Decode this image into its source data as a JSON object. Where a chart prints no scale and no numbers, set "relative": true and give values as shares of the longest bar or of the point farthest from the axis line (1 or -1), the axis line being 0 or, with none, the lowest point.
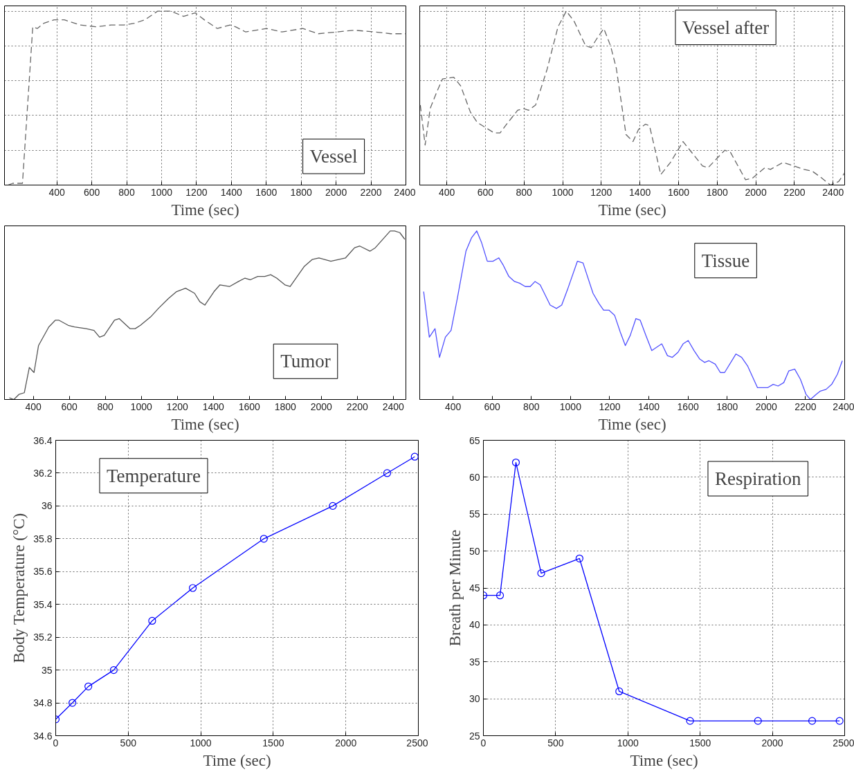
{
  "chart_data": [
    {
      "type": "line",
      "xlabel": "Time (sec)",
      "relative": true,
      "xlim": [
        100,
        2400
      ],
      "xticks": [
        400,
        600,
        800,
        1000,
        1200,
        1400,
        1600,
        1800,
        2000,
        2200,
        2400
      ],
      "grid": true,
      "tick_labels": "x",
      "line_style": "dashed",
      "annotations": [
        "Vessel"
      ],
      "x": [
        120,
        147,
        203,
        262,
        288,
        325,
        384,
        443,
        533,
        622,
        711,
        785,
        845,
        904,
        978,
        1008,
        1052,
        1126,
        1193,
        1245,
        1319,
        1393,
        1423,
        1482,
        1601,
        1690,
        1809,
        1898,
        2002,
        2106,
        2224,
        2313,
        2400
      ],
      "series": [
        {
          "color": "#666666",
          "values": [
            0,
            0.01,
            0.01,
            0.91,
            0.9,
            0.93,
            0.95,
            0.95,
            0.92,
            0.91,
            0.92,
            0.92,
            0.93,
            0.95,
            1.0,
            1.0,
            1.0,
            0.97,
            0.99,
            0.95,
            0.9,
            0.92,
            0.91,
            0.88,
            0.9,
            0.88,
            0.9,
            0.87,
            0.88,
            0.89,
            0.88,
            0.87,
            0.87
          ]
        }
      ]
    },
    {
      "type": "line",
      "xlabel": "Time (sec)",
      "relative": true,
      "xlim": [
        260,
        2460
      ],
      "xticks": [
        400,
        600,
        800,
        1000,
        1200,
        1400,
        1600,
        1800,
        2000,
        2200,
        2400
      ],
      "grid": true,
      "tick_labels": "x",
      "line_style": "dashed",
      "annotations": [
        "Vessel after"
      ],
      "x": [
        263,
        288,
        314,
        350,
        378,
        436,
        472,
        522,
        558,
        645,
        676,
        717,
        767,
        796,
        824,
        860,
        918,
        976,
        1019,
        1060,
        1119,
        1148,
        1176,
        1213,
        1248,
        1278,
        1328,
        1364,
        1393,
        1429,
        1450,
        1508,
        1558,
        1623,
        1724,
        1753,
        1839,
        1868,
        1947,
        1983,
        2047,
        2076,
        2141,
        2170,
        2249,
        2292,
        2342,
        2386,
        2429,
        2460
      ],
      "series": [
        {
          "color": "#666666",
          "values": [
            0.46,
            0.23,
            0.44,
            0.54,
            0.61,
            0.62,
            0.57,
            0.42,
            0.36,
            0.3,
            0.3,
            0.36,
            0.43,
            0.44,
            0.43,
            0.46,
            0.66,
            0.91,
            1.0,
            0.94,
            0.8,
            0.79,
            0.84,
            0.9,
            0.8,
            0.67,
            0.29,
            0.25,
            0.32,
            0.35,
            0.34,
            0.06,
            0.13,
            0.25,
            0.11,
            0.1,
            0.2,
            0.19,
            0.03,
            0.04,
            0.1,
            0.09,
            0.13,
            0.12,
            0.09,
            0.08,
            0.04,
            0,
            0.02,
            0.07
          ]
        }
      ]
    },
    {
      "type": "line",
      "xlabel": "Time (sec)",
      "relative": true,
      "xlim": [
        240,
        2470
      ],
      "xticks": [
        400,
        600,
        800,
        1000,
        1200,
        1400,
        1600,
        1800,
        2000,
        2200,
        2400
      ],
      "tick_labels": "x",
      "line_style": "solid",
      "annotations": [
        "Tumor"
      ],
      "x": [
        267,
        292,
        320,
        350,
        378,
        404,
        429,
        486,
        522,
        543,
        594,
        629,
        694,
        737,
        768,
        794,
        851,
        877,
        938,
        966,
        995,
        1052,
        1095,
        1152,
        1196,
        1246,
        1296,
        1325,
        1353,
        1404,
        1437,
        1490,
        1540,
        1576,
        1605,
        1647,
        1686,
        1719,
        1752,
        1798,
        1827,
        1906,
        1949,
        1987,
        2053,
        2135,
        2185,
        2214,
        2271,
        2300,
        2383,
        2407,
        2436,
        2464
      ],
      "series": [
        {
          "color": "#555555",
          "values": [
            0.01,
            0,
            0.03,
            0.04,
            0.19,
            0.16,
            0.32,
            0.43,
            0.47,
            0.47,
            0.44,
            0.43,
            0.42,
            0.41,
            0.37,
            0.38,
            0.47,
            0.48,
            0.42,
            0.42,
            0.44,
            0.49,
            0.54,
            0.6,
            0.64,
            0.66,
            0.63,
            0.58,
            0.56,
            0.64,
            0.68,
            0.67,
            0.7,
            0.72,
            0.71,
            0.73,
            0.73,
            0.74,
            0.72,
            0.68,
            0.67,
            0.79,
            0.83,
            0.84,
            0.82,
            0.84,
            0.9,
            0.91,
            0.88,
            0.9,
            1.0,
            1.0,
            0.99,
            0.95
          ]
        }
      ]
    },
    {
      "type": "line",
      "xlabel": "Time (sec)",
      "relative": true,
      "xlim": [
        230,
        2400
      ],
      "xticks": [
        400,
        600,
        800,
        1000,
        1200,
        1400,
        1600,
        1800,
        2000,
        2200,
        2400
      ],
      "tick_labels": "x",
      "line_style": "solid",
      "annotations": [
        "Tissue"
      ],
      "x": [
        250,
        279,
        308,
        331,
        361,
        390,
        422,
        466,
        495,
        521,
        546,
        575,
        604,
        634,
        655,
        685,
        714,
        740,
        769,
        794,
        819,
        845,
        896,
        928,
        955,
        984,
        1035,
        1064,
        1115,
        1145,
        1169,
        1196,
        1225,
        1254,
        1280,
        1305,
        1334,
        1356,
        1385,
        1415,
        1466,
        1495,
        1520,
        1549,
        1575,
        1601,
        1631,
        1660,
        1685,
        1707,
        1739,
        1765,
        1787,
        1845,
        1874,
        1904,
        1955,
        2006,
        2035,
        2060,
        2089,
        2115,
        2145,
        2174,
        2203,
        2225,
        2254,
        2276,
        2305,
        2334,
        2363,
        2388
      ],
      "series": [
        {
          "color": "#5050ff",
          "values": [
            0.64,
            0.37,
            0.42,
            0.25,
            0.37,
            0.41,
            0.6,
            0.88,
            0.96,
            1.0,
            0.93,
            0.82,
            0.82,
            0.84,
            0.8,
            0.73,
            0.7,
            0.69,
            0.67,
            0.67,
            0.7,
            0.68,
            0.56,
            0.54,
            0.56,
            0.65,
            0.82,
            0.81,
            0.63,
            0.57,
            0.53,
            0.53,
            0.5,
            0.4,
            0.32,
            0.38,
            0.48,
            0.47,
            0.38,
            0.29,
            0.33,
            0.26,
            0.25,
            0.28,
            0.33,
            0.35,
            0.29,
            0.24,
            0.22,
            0.23,
            0.21,
            0.16,
            0.16,
            0.27,
            0.25,
            0.2,
            0.07,
            0.07,
            0.09,
            0.08,
            0.1,
            0.17,
            0.18,
            0.12,
            0.03,
            0,
            0.03,
            0.05,
            0.06,
            0.09,
            0.15,
            0.23
          ]
        }
      ]
    },
    {
      "type": "line",
      "xlabel": "Time (sec)",
      "ylabel": "Body Temperature (°C)",
      "xlim": [
        0,
        2500
      ],
      "xticks": [
        0,
        500,
        1000,
        1500,
        2000,
        2500
      ],
      "ylim": [
        34.6,
        36.4
      ],
      "yticks": [
        34.6,
        34.8,
        35,
        35.2,
        35.4,
        35.6,
        35.8,
        36,
        36.2,
        36.4
      ],
      "grid": true,
      "marker": "circle",
      "line_style": "solid",
      "annotations": [
        "Temperature"
      ],
      "x": [
        0,
        115,
        225,
        400,
        665,
        945,
        1435,
        1910,
        2285,
        2475
      ],
      "series": [
        {
          "color": "#0000ff",
          "values": [
            34.7,
            34.8,
            34.9,
            35.0,
            35.3,
            35.5,
            35.8,
            36.0,
            36.2,
            36.3
          ]
        }
      ]
    },
    {
      "type": "line",
      "xlabel": "Time (sec)",
      "ylabel": "Breath per Minute",
      "xlim": [
        0,
        2500
      ],
      "xticks": [
        0,
        500,
        1000,
        1500,
        2000,
        2500
      ],
      "ylim": [
        25,
        65
      ],
      "yticks": [
        25,
        30,
        35,
        40,
        45,
        50,
        55,
        60,
        65
      ],
      "grid": true,
      "marker": "circle",
      "line_style": "solid",
      "annotations": [
        "Respiration"
      ],
      "x": [
        0,
        115,
        225,
        400,
        665,
        940,
        1430,
        1900,
        2275,
        2465
      ],
      "series": [
        {
          "color": "#0000ff",
          "values": [
            44,
            44,
            62,
            47,
            49,
            31,
            27,
            27,
            27,
            27
          ]
        }
      ]
    }
  ]
}
